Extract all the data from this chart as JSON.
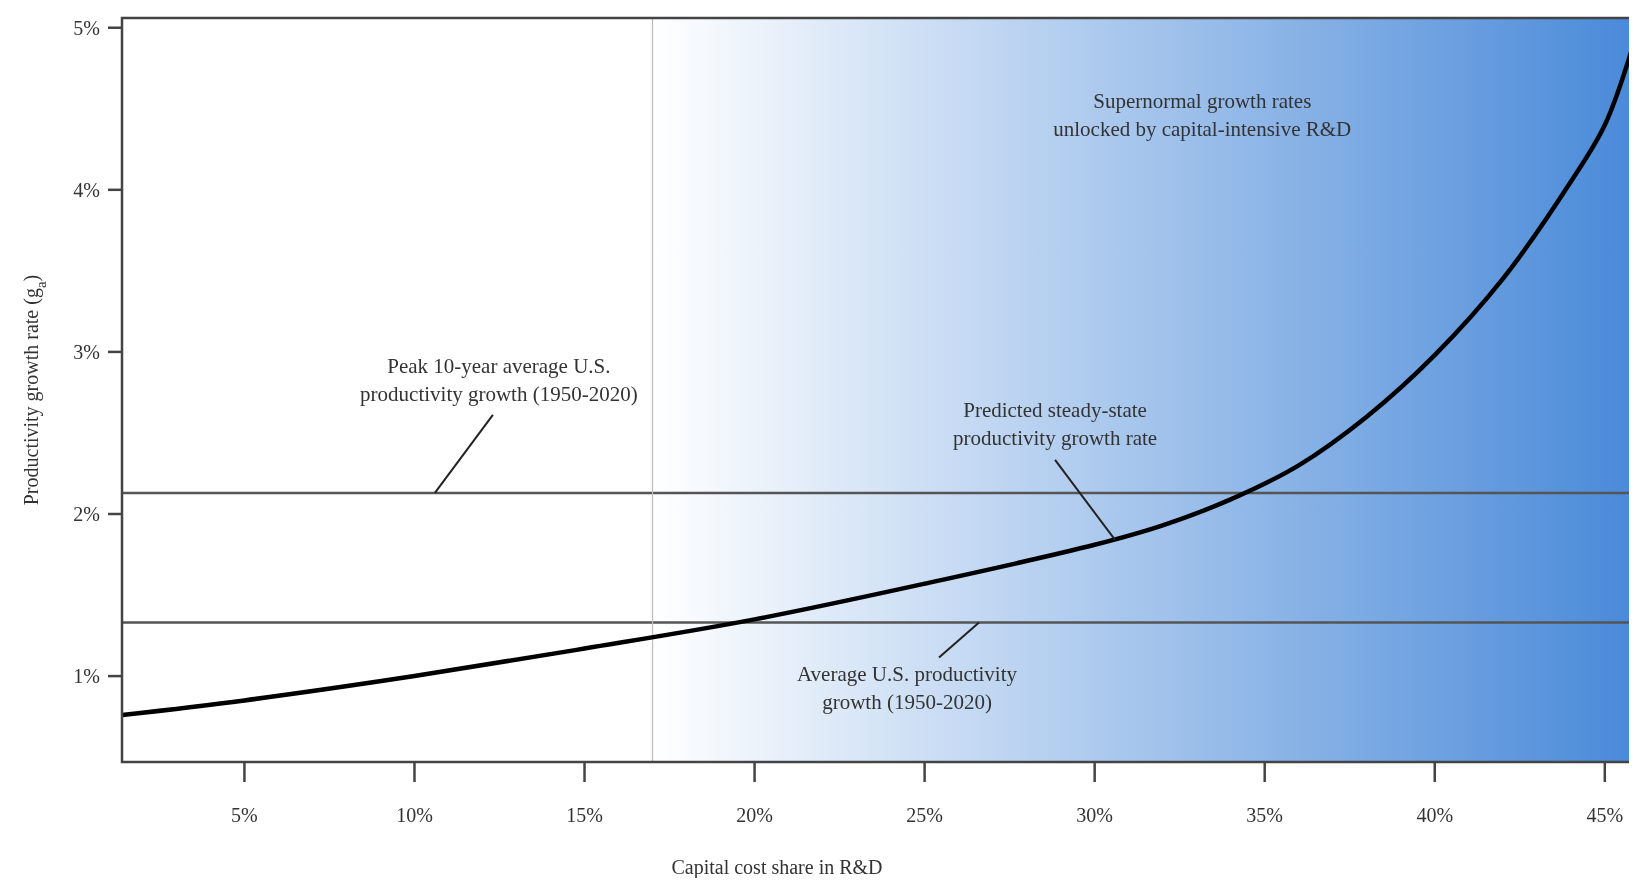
{
  "chart_data": {
    "type": "line",
    "xlabel": "Capital cost share in R&D",
    "ylabel": "Productivity growth rate (g$_{a}$)",
    "xlim": [
      1.4,
      45.8
    ],
    "ylim": [
      0.47,
      5.06
    ],
    "xticks": [
      {
        "value": 5,
        "label": "5%"
      },
      {
        "value": 10,
        "label": "10%"
      },
      {
        "value": 15,
        "label": "15%"
      },
      {
        "value": 20,
        "label": "20%"
      },
      {
        "value": 25,
        "label": "25%"
      },
      {
        "value": 30,
        "label": "30%"
      },
      {
        "value": 35,
        "label": "35%"
      },
      {
        "value": 40,
        "label": "40%"
      },
      {
        "value": 45,
        "label": "45%"
      }
    ],
    "yticks": [
      {
        "value": 1,
        "label": "1%"
      },
      {
        "value": 2,
        "label": "2%"
      },
      {
        "value": 3,
        "label": "3%"
      },
      {
        "value": 4,
        "label": "4%"
      },
      {
        "value": 5,
        "label": "5%"
      }
    ],
    "grid": false,
    "marker": "none",
    "line_style": "solid",
    "x": [
      1.4,
      5,
      10,
      15,
      20,
      25,
      30,
      32,
      34,
      36,
      38,
      40,
      42,
      44,
      45,
      45.8
    ],
    "series": [
      {
        "color": "#000000",
        "values": [
          0.76,
          0.85,
          1.0,
          1.17,
          1.35,
          1.57,
          1.81,
          1.93,
          2.09,
          2.3,
          2.6,
          2.98,
          3.45,
          4.05,
          4.4,
          4.87
        ]
      }
    ],
    "ref_lines": [
      {
        "axis": "y",
        "value": 2.13,
        "color": "#555555"
      },
      {
        "axis": "y",
        "value": 1.33,
        "color": "#555555"
      },
      {
        "axis": "x",
        "value": 17,
        "color": "#bbbbbb"
      }
    ],
    "bands": [
      {
        "axis": "x",
        "from": 17,
        "to": 45.8,
        "label": "Supernormal growth rates\nunlocked by capital-intensive R&D",
        "color": "#4a8ad9"
      }
    ],
    "annotations": [
      {
        "text": "Peak 10-year average U.S.\nproductivity growth (1950-2020)",
        "x": 10.6,
        "y": 2.13
      },
      {
        "text": "Predicted steady-state\nproductivity growth rate",
        "x": 30.6,
        "y": 1.84
      },
      {
        "text": "Average U.S. productivity\ngrowth (1950-2020)",
        "x": 26.6,
        "y": 1.33
      }
    ]
  }
}
